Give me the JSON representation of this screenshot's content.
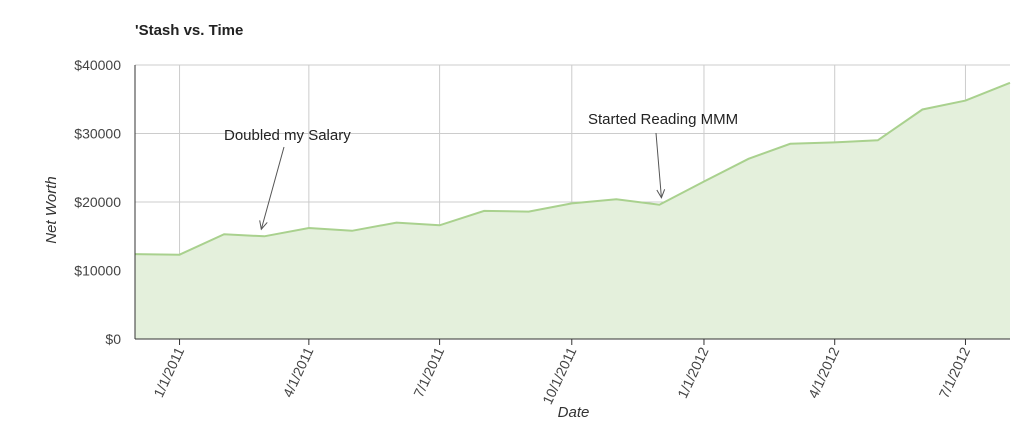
{
  "chart_data": {
    "type": "area",
    "title": "'Stash vs. Time",
    "xlabel": "Date",
    "ylabel": "Net Worth",
    "ylim": [
      0,
      40000
    ],
    "y_ticks": [
      "$0",
      "$10000",
      "$20000",
      "$30000",
      "$40000"
    ],
    "x_ticks": [
      "1/1/2011",
      "4/1/2011",
      "7/1/2011",
      "10/1/2011",
      "1/1/2012",
      "4/1/2012",
      "7/1/2012"
    ],
    "grid": true,
    "colors": {
      "line": "#a9d18e",
      "fill": "#e4f0dc",
      "grid": "#cccccc",
      "axis": "#333333"
    },
    "series": [
      {
        "x": [
          "2010-12-01",
          "2011-01-01",
          "2011-02-01",
          "2011-03-01",
          "2011-04-01",
          "2011-05-01",
          "2011-06-01",
          "2011-07-01",
          "2011-08-01",
          "2011-09-01",
          "2011-10-01",
          "2011-11-01",
          "2011-12-01",
          "2012-01-01",
          "2012-02-01",
          "2012-03-01",
          "2012-04-01",
          "2012-05-01",
          "2012-06-01",
          "2012-07-01",
          "2012-08-01"
        ],
        "values": [
          12400,
          12300,
          15300,
          15000,
          16200,
          15800,
          17000,
          16600,
          18700,
          18600,
          19800,
          20400,
          19600,
          23000,
          26300,
          28500,
          28700,
          29000,
          33500,
          34800,
          37400
        ]
      }
    ],
    "annotations": [
      {
        "text": "Doubled my Salary",
        "date": "2011-03-01",
        "value": 15000
      },
      {
        "text": "Started Reading MMM",
        "date": "2011-12-01",
        "value": 19600
      }
    ]
  }
}
